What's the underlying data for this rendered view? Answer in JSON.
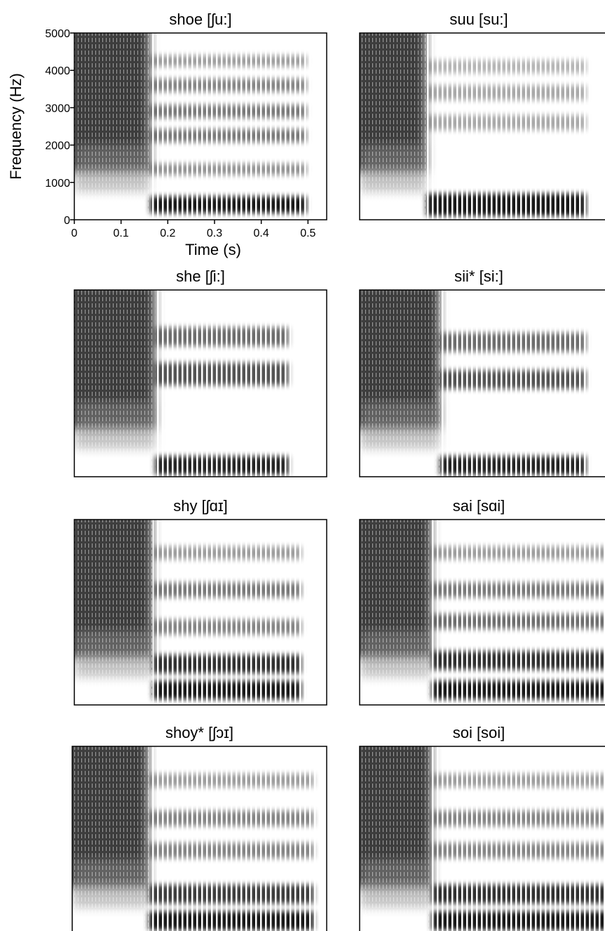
{
  "chart_data": [
    {
      "type": "spectrogram",
      "title": "shoe [ʃu:]",
      "xlabel": "Time (s)",
      "ylabel": "Frequency (Hz)",
      "xlim": [
        0,
        0.54
      ],
      "ylim": [
        0,
        5000
      ],
      "xticks": [
        0,
        0.1,
        0.2,
        0.3,
        0.4,
        0.5
      ],
      "yticks": [
        0,
        1000,
        2000,
        3000,
        4000,
        5000
      ]
    },
    {
      "type": "spectrogram",
      "title": "suu [su:]"
    },
    {
      "type": "spectrogram",
      "title": "she [ʃi:]"
    },
    {
      "type": "spectrogram",
      "title": "sii* [si:]"
    },
    {
      "type": "spectrogram",
      "title": "shy [ʃɑɪ]"
    },
    {
      "type": "spectrogram",
      "title": "sai [sɑi]"
    },
    {
      "type": "spectrogram",
      "title": "shoy* [ʃɔɪ]"
    },
    {
      "type": "spectrogram",
      "title": "soi [soi]"
    }
  ]
}
